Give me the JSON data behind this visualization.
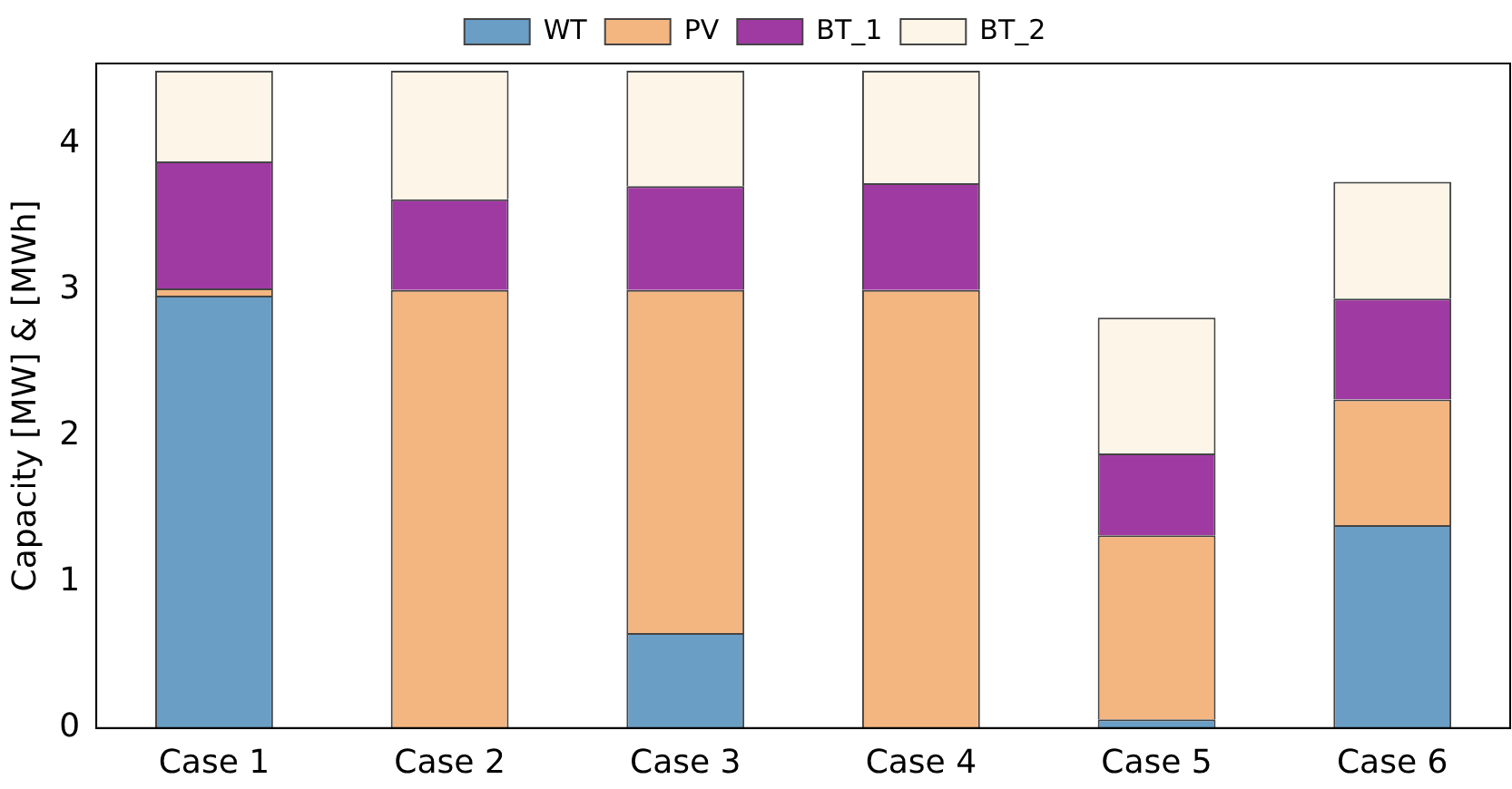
{
  "chart_data": {
    "type": "bar",
    "stacked": true,
    "ylabel": "Capacity [MW] & [MWh]",
    "categories": [
      "Case 1",
      "Case 2",
      "Case 3",
      "Case 4",
      "Case 5",
      "Case 6"
    ],
    "series": [
      {
        "name": "WT",
        "color": "#6a9ec5",
        "values": [
          2.96,
          0,
          0.65,
          0,
          0.06,
          1.39
        ]
      },
      {
        "name": "PV",
        "color": "#f4b681",
        "values": [
          0.05,
          3.0,
          2.35,
          3.0,
          1.26,
          0.86
        ]
      },
      {
        "name": "BT_1",
        "color": "#a03aa3",
        "values": [
          0.87,
          0.62,
          0.71,
          0.73,
          0.56,
          0.69
        ]
      },
      {
        "name": "BT_2",
        "color": "#fdf5e8",
        "values": [
          0.62,
          0.88,
          0.79,
          0.77,
          0.93,
          0.8
        ]
      }
    ],
    "ylim": [
      0,
      4.55
    ],
    "yticks": [
      0,
      1,
      2,
      3,
      4
    ],
    "grid": false,
    "legend": "top"
  }
}
